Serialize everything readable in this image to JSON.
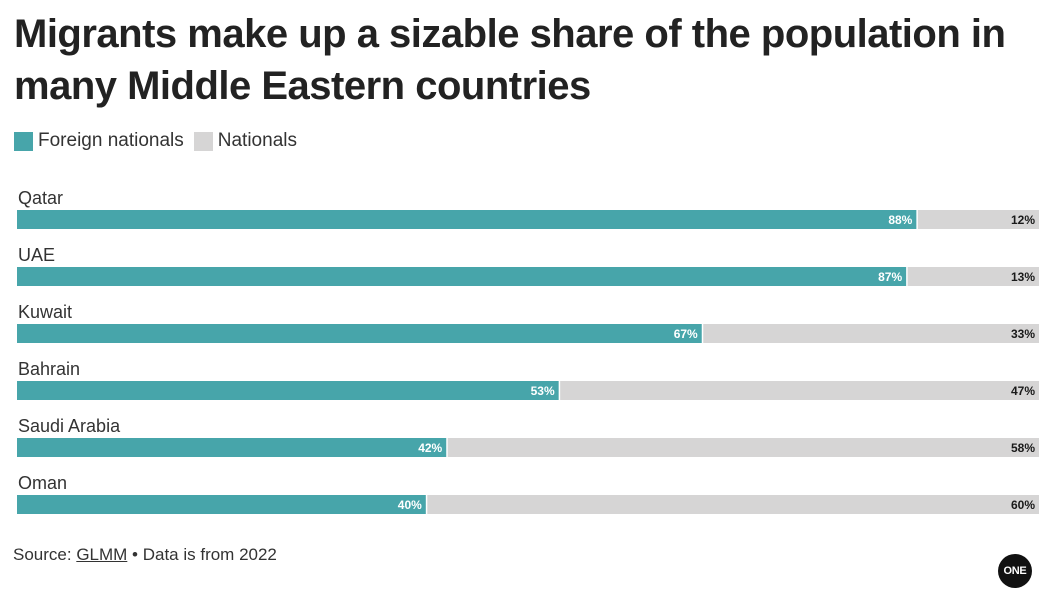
{
  "title": "Migrants make up a sizable share of the population in many Middle Eastern countries",
  "legend": [
    {
      "label": "Foreign nationals",
      "color": "#47a5aa"
    },
    {
      "label": "Nationals",
      "color": "#d6d5d5"
    }
  ],
  "chart_data": {
    "type": "bar",
    "orientation": "horizontal",
    "stacked": true,
    "categories": [
      "Qatar",
      "UAE",
      "Kuwait",
      "Bahrain",
      "Saudi Arabia",
      "Oman"
    ],
    "series": [
      {
        "name": "Foreign nationals",
        "values": [
          88,
          87,
          67,
          53,
          42,
          40
        ],
        "labels": [
          "88%",
          "87%",
          "67%",
          "53%",
          "42%",
          "40%"
        ],
        "color": "#47a5aa"
      },
      {
        "name": "Nationals",
        "values": [
          12,
          13,
          33,
          47,
          58,
          60
        ],
        "labels": [
          "12%",
          "13%",
          "33%",
          "47%",
          "58%",
          "60%"
        ],
        "color": "#d6d5d5"
      }
    ],
    "xlim": [
      0,
      100
    ],
    "grid": false,
    "legend_position": "top-left"
  },
  "footer": {
    "source_prefix": "Source: ",
    "source_link": "GLMM",
    "source_suffix": " • Data is from 2022"
  },
  "logo_text": "ONE"
}
